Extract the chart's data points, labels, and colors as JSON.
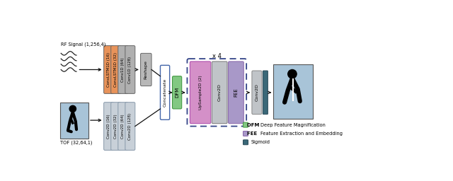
{
  "bg_color": "#ffffff",
  "rf_signal_label": "RF Signal (1,256,4)",
  "tof_label": "TOF (32,64,1)",
  "rf_blocks": [
    {
      "label": "ConvLSTM1D (16)",
      "color": "#E8935A"
    },
    {
      "label": "ConvLSTM1D (32)",
      "color": "#E8935A"
    },
    {
      "label": "Conv1D (64)",
      "color": "#B0B0B0"
    },
    {
      "label": "Conv1D (128)",
      "color": "#B0B0B0"
    }
  ],
  "reshape_label": "Reshape",
  "reshape_color": "#B8B8B8",
  "tof_blocks": [
    {
      "label": "Conv2D (16)",
      "color": "#C8D0D8"
    },
    {
      "label": "Conv2D (32)",
      "color": "#C8D0D8"
    },
    {
      "label": "Conv2D (64)",
      "color": "#C8D0D8"
    },
    {
      "label": "Conv2D (128)",
      "color": "#C8D0D8"
    }
  ],
  "tof_block_edge": "#8899AA",
  "concatenate_label": "Concatenate",
  "concatenate_color": "#ffffff",
  "concatenate_edge": "#4466AA",
  "dfm_label": "DFM",
  "dfm_color": "#82C882",
  "dfm_edge": "#449944",
  "upsample_label": "UpSample2D (2)",
  "upsample_color": "#D490C8",
  "upsample_edge": "#AA44AA",
  "conv2d_mid_label": "Conv2D",
  "conv2d_mid_color": "#C0C4C8",
  "fee_label": "FEE",
  "fee_color": "#A898C8",
  "fee_edge": "#8866AA",
  "conv2d_final_label": "Conv2D",
  "conv2d_final_color": "#C0C4C8",
  "conv2d_final_edge": "#888888",
  "sigmoid_color": "#3A6878",
  "sigmoid_edge": "#2A4A58",
  "x4_label": "x 4",
  "legend_dfm_label": "DFM",
  "legend_dfm": "  Deep Feature Magnification",
  "legend_fee_label": "FEE",
  "legend_fee": "  Feature Extraction and Embedding",
  "legend_sigmoid": "  Sigmoid",
  "arrow_color": "#111111",
  "dashed_box_color": "#334488",
  "tof_img_color": "#A8C4D8",
  "out_img_color": "#A8C4D8"
}
